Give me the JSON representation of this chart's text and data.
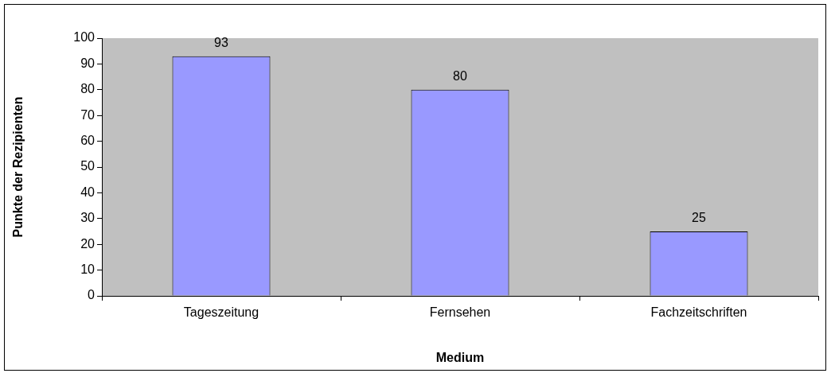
{
  "chart_data": {
    "type": "bar",
    "xlabel": "Medium",
    "ylabel": "Punkte der Rezipienten",
    "categories": [
      "Tageszeitung",
      "Fernsehen",
      "Fachzeitschriften"
    ],
    "values": [
      93,
      80,
      25
    ],
    "color": "#9999ff",
    "ylim": [
      0,
      100
    ],
    "yticks": [
      0,
      10,
      20,
      30,
      40,
      50,
      60,
      70,
      80,
      90,
      100
    ],
    "grid": false,
    "legend": false,
    "data_labels": true
  }
}
